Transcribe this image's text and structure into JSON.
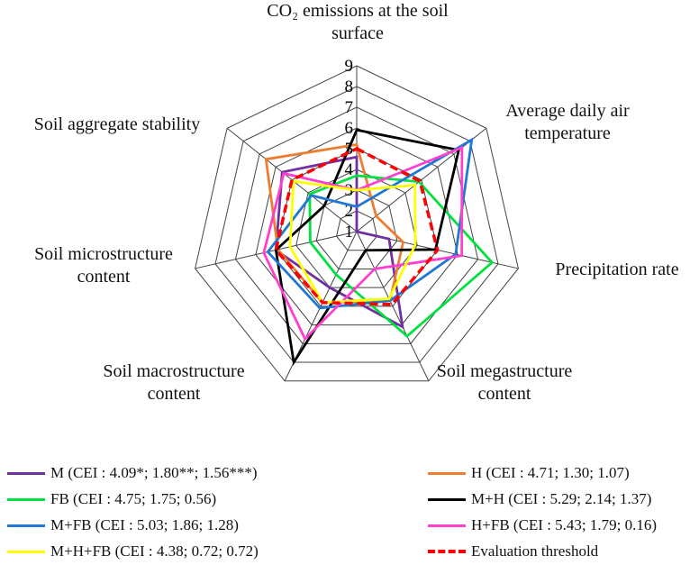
{
  "chart_data": {
    "type": "radar",
    "axes": [
      [
        "CO₂ emissions at the soil",
        "surface"
      ],
      [
        "Average daily air",
        "temperature"
      ],
      [
        "Precipitation rate"
      ],
      [
        "Soil megastructure",
        "content"
      ],
      [
        "Soil macrostructure",
        "content"
      ],
      [
        "Soil microstructure",
        "content"
      ],
      [
        "Soil aggregate stability"
      ]
    ],
    "rlim": [
      1,
      9
    ],
    "ticks": [
      "1",
      "2",
      "3",
      "4",
      "5",
      "6",
      "7",
      "8",
      "9"
    ],
    "series": [
      {
        "name": "M (CEI : 4.09*; 1.80**; 1.56***)",
        "color": "#7030a0",
        "dash": false,
        "values": [
          4.6,
          1.0,
          2.6,
          6.1,
          4.0,
          5.0,
          5.6
        ]
      },
      {
        "name": "H (CEI : 4.71; 1.30; 1.07)",
        "color": "#ed7d31",
        "dash": false,
        "values": [
          5.2,
          2.2,
          3.3,
          4.7,
          4.8,
          4.9,
          6.6
        ]
      },
      {
        "name": "FB (CEI : 4.75; 1.75; 0.56)",
        "color": "#00e040",
        "dash": false,
        "values": [
          3.7,
          4.85,
          7.7,
          6.6,
          3.3,
          3.3,
          3.9
        ]
      },
      {
        "name": "M+H (CEI : 5.29; 2.14; 1.37)",
        "color": "#000000",
        "dash": false,
        "values": [
          5.9,
          7.3,
          4.9,
          2.0,
          8.0,
          5.0,
          3.0
        ]
      },
      {
        "name": "M+FB (CEI : 5.03; 1.86; 1.28)",
        "color": "#1f78d4",
        "dash": false,
        "values": [
          2.2,
          8.1,
          5.9,
          4.7,
          5.1,
          5.4,
          3.8
        ]
      },
      {
        "name": "H+FB (CEI : 5.43; 1.79; 0.16)",
        "color": "#ff3fd0",
        "dash": false,
        "values": [
          3.0,
          7.5,
          6.2,
          3.0,
          6.75,
          5.6,
          5.5
        ]
      },
      {
        "name": "M+H+FB (CEI : 4.38; 0.72; 0.72)",
        "color": "#ffff00",
        "dash": false,
        "values": [
          3.0,
          4.6,
          3.9,
          4.6,
          4.8,
          4.3,
          4.9
        ]
      },
      {
        "name": "Evaluation threshold",
        "color": "#ff0000",
        "dash": true,
        "values": [
          5.0,
          4.9,
          5.0,
          4.9,
          4.8,
          5.0,
          5.0
        ]
      }
    ],
    "legend_position": "bottom"
  }
}
